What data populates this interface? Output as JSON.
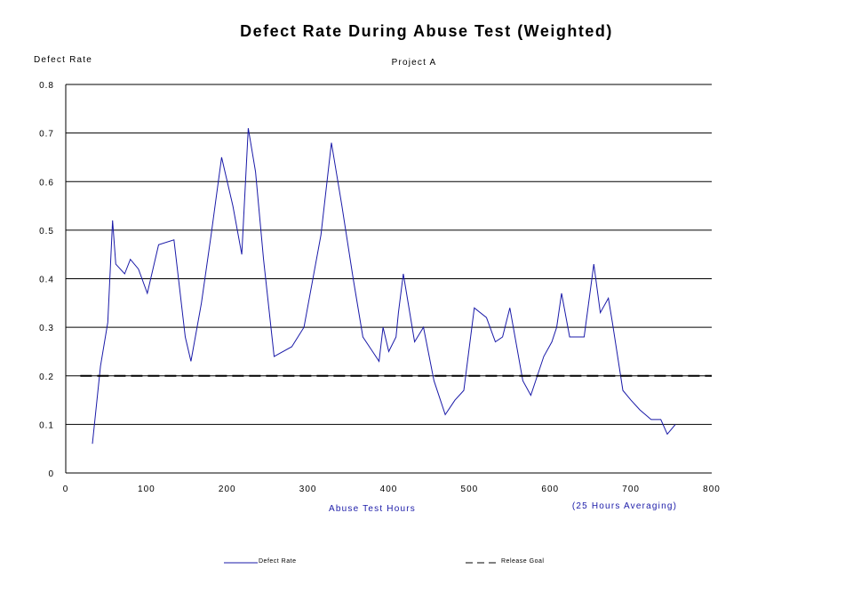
{
  "chart_data": {
    "type": "line",
    "title": "Defect Rate During Abuse Test (Weighted)",
    "subtitle": "Project A",
    "ylabel": "Defect Rate",
    "xlabel": "Abuse Test Hours",
    "note": "(25 Hours Averaging)",
    "xlim": [
      0,
      800
    ],
    "ylim": [
      0,
      0.8
    ],
    "xticks": [
      "0",
      "100",
      "200",
      "300",
      "400",
      "500",
      "600",
      "700",
      "800"
    ],
    "yticks": [
      "0",
      "0.1",
      "0.2",
      "0.3",
      "0.4",
      "0.5",
      "0.6",
      "0.7",
      "0.8"
    ],
    "grid": "horizontal",
    "legend_position": "bottom",
    "series": [
      {
        "name": "Defect Rate",
        "color": "#1a1aa8",
        "style": "solid",
        "x": [
          33,
          43,
          52,
          58,
          62,
          73,
          80,
          90,
          101,
          115,
          134,
          148,
          155,
          168,
          180,
          193,
          207,
          218,
          226,
          235,
          245,
          258,
          280,
          295,
          316,
          329,
          342,
          356,
          368,
          380,
          388,
          393,
          400,
          409,
          412,
          418,
          432,
          443,
          456,
          470,
          482,
          493,
          506,
          521,
          532,
          541,
          550,
          566,
          576,
          592,
          602,
          608,
          614,
          624,
          636,
          642,
          654,
          662,
          672,
          677,
          690,
          700,
          711,
          725,
          737,
          745,
          755
        ],
        "y": [
          0.06,
          0.22,
          0.31,
          0.52,
          0.43,
          0.41,
          0.44,
          0.42,
          0.37,
          0.47,
          0.48,
          0.28,
          0.23,
          0.35,
          0.49,
          0.65,
          0.55,
          0.45,
          0.71,
          0.62,
          0.44,
          0.24,
          0.26,
          0.3,
          0.49,
          0.68,
          0.55,
          0.4,
          0.28,
          0.25,
          0.23,
          0.3,
          0.25,
          0.28,
          0.33,
          0.41,
          0.27,
          0.3,
          0.19,
          0.12,
          0.15,
          0.17,
          0.34,
          0.32,
          0.27,
          0.28,
          0.34,
          0.19,
          0.16,
          0.24,
          0.27,
          0.3,
          0.37,
          0.28,
          0.28,
          0.28,
          0.43,
          0.33,
          0.36,
          0.31,
          0.17,
          0.15,
          0.13,
          0.11,
          0.11,
          0.08,
          0.1
        ]
      },
      {
        "name": "Release Goal",
        "color": "#000000",
        "style": "dashed",
        "x": [
          18,
          800
        ],
        "y": [
          0.2,
          0.2
        ]
      }
    ]
  },
  "legend": {
    "defect_rate_label": "Defect Rate",
    "release_goal_label": "Release Goal"
  }
}
